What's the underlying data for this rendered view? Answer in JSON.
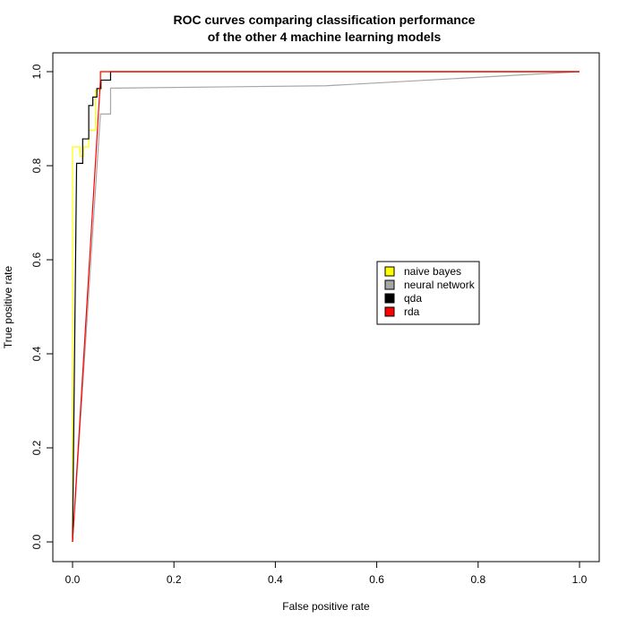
{
  "chart_data": {
    "type": "line",
    "title": "ROC curves comparing classification performance",
    "subtitle": "of the other 4 machine learning models",
    "xlabel": "False positive rate",
    "ylabel": "True positive rate",
    "xlim": [
      0,
      1
    ],
    "ylim": [
      0,
      1
    ],
    "xticks": [
      {
        "value": 0.0,
        "label": "0.0"
      },
      {
        "value": 0.2,
        "label": "0.2"
      },
      {
        "value": 0.4,
        "label": "0.4"
      },
      {
        "value": 0.6,
        "label": "0.6"
      },
      {
        "value": 0.8,
        "label": "0.8"
      },
      {
        "value": 1.0,
        "label": "1.0"
      }
    ],
    "yticks": [
      {
        "value": 0.0,
        "label": "0.0"
      },
      {
        "value": 0.2,
        "label": "0.2"
      },
      {
        "value": 0.4,
        "label": "0.4"
      },
      {
        "value": 0.6,
        "label": "0.6"
      },
      {
        "value": 0.8,
        "label": "0.8"
      },
      {
        "value": 1.0,
        "label": "1.0"
      }
    ],
    "grid": false,
    "legend_position": "center-right",
    "series": [
      {
        "name": "naive bayes",
        "color": "#ffff00",
        "x": [
          0,
          0,
          0.015,
          0.015,
          0.022,
          0.022,
          0.032,
          0.032,
          0.045,
          0.045,
          0.055,
          0.055,
          1
        ],
        "y": [
          0,
          0.84,
          0.84,
          0.82,
          0.82,
          0.84,
          0.84,
          0.875,
          0.875,
          0.96,
          0.96,
          1,
          1
        ]
      },
      {
        "name": "neural network",
        "color": "#a6a6a6",
        "x": [
          0,
          0.055,
          0.055,
          0.075,
          0.075,
          0.5,
          1
        ],
        "y": [
          0,
          0.91,
          0.91,
          0.91,
          0.965,
          0.97,
          1
        ]
      },
      {
        "name": "qda",
        "color": "#000000",
        "x": [
          0,
          0.008,
          0.008,
          0.02,
          0.02,
          0.032,
          0.032,
          0.04,
          0.04,
          0.048,
          0.048,
          0.056,
          0.056,
          0.075,
          0.075,
          1
        ],
        "y": [
          0,
          0.805,
          0.805,
          0.805,
          0.857,
          0.857,
          0.928,
          0.928,
          0.946,
          0.946,
          0.964,
          0.964,
          0.982,
          0.982,
          1,
          1
        ]
      },
      {
        "name": "rda",
        "color": "#ff0000",
        "x": [
          0,
          0.055,
          0.055,
          1
        ],
        "y": [
          0,
          0.982,
          1,
          1
        ]
      }
    ]
  }
}
